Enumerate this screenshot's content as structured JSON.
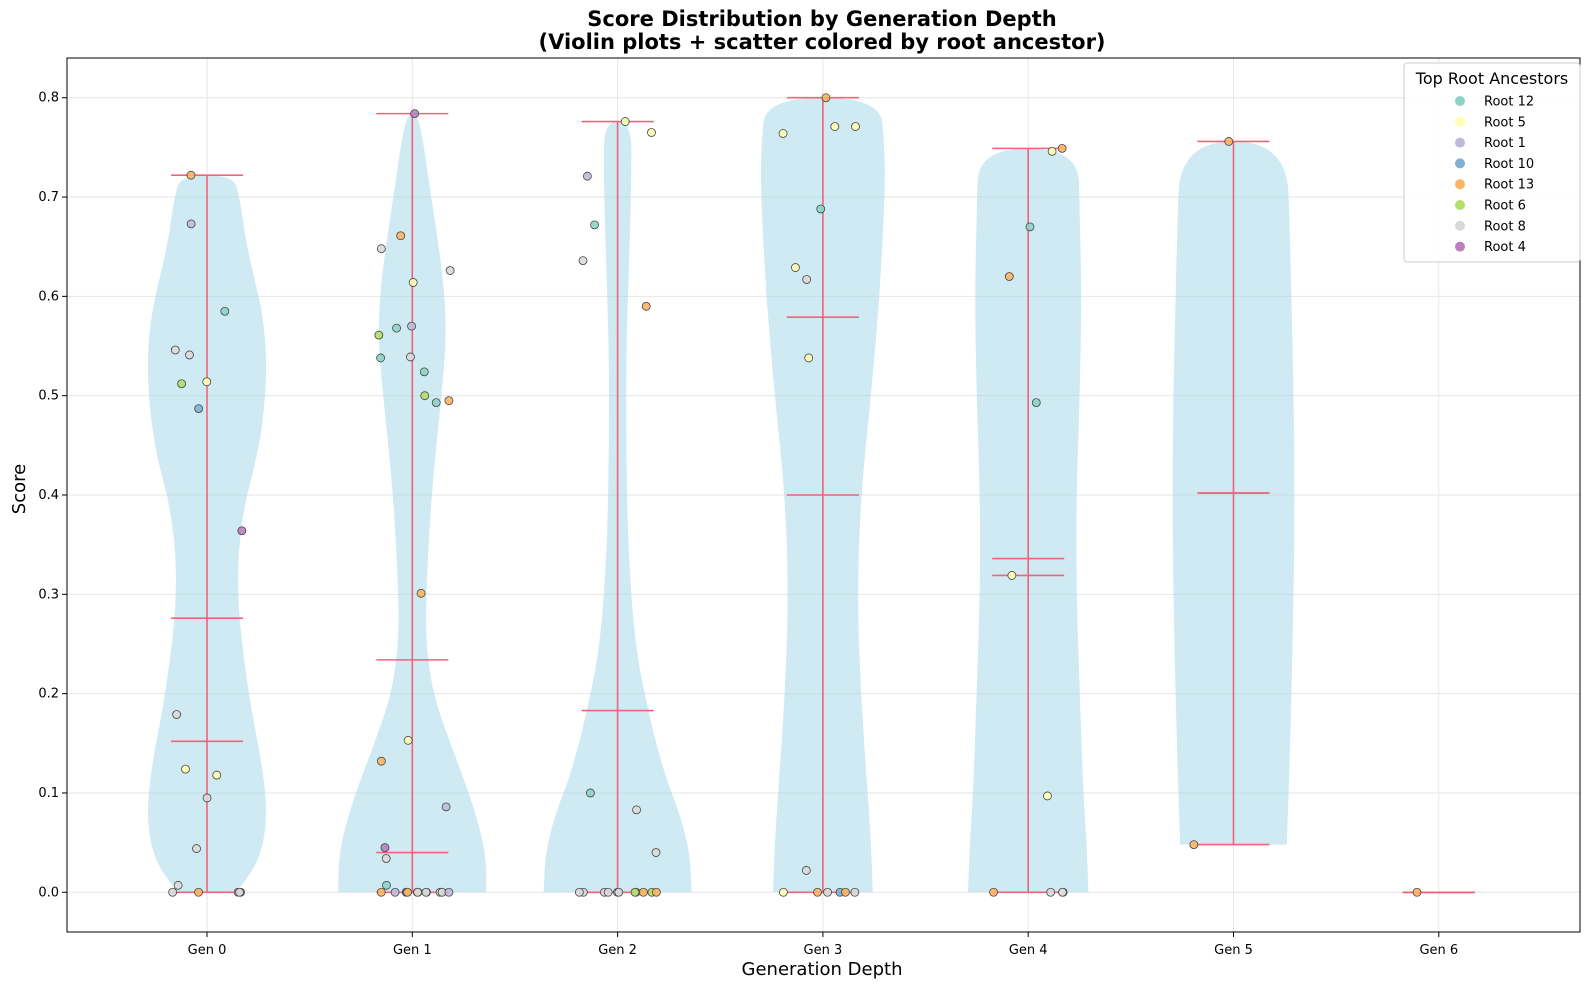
{
  "chart_data": {
    "type": "violin",
    "title_line1": "Score Distribution by Generation Depth",
    "title_line2": "(Violin plots + scatter colored by root ancestor)",
    "xlabel": "Generation Depth",
    "ylabel": "Score",
    "ylim": [
      -0.04,
      0.84
    ],
    "yticks": [
      "0.0",
      "0.1",
      "0.2",
      "0.3",
      "0.4",
      "0.5",
      "0.6",
      "0.7",
      "0.8"
    ],
    "categories": [
      "Gen 0",
      "Gen 1",
      "Gen 2",
      "Gen 3",
      "Gen 4",
      "Gen 5",
      "Gen 6"
    ],
    "grid": true,
    "legend_position": "top-right",
    "colors": {
      "violin_fill": "#a8d8e8",
      "stat_line": "#f0637c"
    },
    "legend": {
      "title": "Top Root Ancestors",
      "entries": [
        {
          "label": "Root 12",
          "color": "#8dd3c7"
        },
        {
          "label": "Root 5",
          "color": "#ffffb3"
        },
        {
          "label": "Root 1",
          "color": "#bebada"
        },
        {
          "label": "Root 10",
          "color": "#80b1d3"
        },
        {
          "label": "Root 13",
          "color": "#fdb462"
        },
        {
          "label": "Root 6",
          "color": "#b3de69"
        },
        {
          "label": "Root 8",
          "color": "#d9d9d9"
        },
        {
          "label": "Root 4",
          "color": "#bc80bd"
        }
      ]
    },
    "violins": [
      {
        "gen": 0,
        "min": 0.0,
        "max": 0.722,
        "mean": 0.276,
        "median": 0.152,
        "profile": [
          [
            0.0,
            0.34
          ],
          [
            0.03,
            0.6
          ],
          [
            0.07,
            0.7
          ],
          [
            0.12,
            0.66
          ],
          [
            0.2,
            0.48
          ],
          [
            0.3,
            0.34
          ],
          [
            0.38,
            0.4
          ],
          [
            0.45,
            0.62
          ],
          [
            0.52,
            0.7
          ],
          [
            0.58,
            0.66
          ],
          [
            0.65,
            0.46
          ],
          [
            0.7,
            0.38
          ],
          [
            0.722,
            0.3
          ]
        ],
        "points": [
          [
            0.0,
            "#d9d9d9"
          ],
          [
            0.0,
            "#bebada"
          ],
          [
            0.0,
            "#d9d9d9"
          ],
          [
            0.0,
            "#fdb462"
          ],
          [
            0.0,
            "#d9d9d9"
          ],
          [
            0.007,
            "#d9d9d9"
          ],
          [
            0.044,
            "#d9d9d9"
          ],
          [
            0.095,
            "#d9d9d9"
          ],
          [
            0.118,
            "#ffffb3"
          ],
          [
            0.124,
            "#ffffb3"
          ],
          [
            0.179,
            "#d9d9d9"
          ],
          [
            0.364,
            "#bc80bd"
          ],
          [
            0.487,
            "#80b1d3"
          ],
          [
            0.512,
            "#b3de69"
          ],
          [
            0.514,
            "#ffffb3"
          ],
          [
            0.541,
            "#d9d9d9"
          ],
          [
            0.546,
            "#d9d9d9"
          ],
          [
            0.585,
            "#8dd3c7"
          ],
          [
            0.673,
            "#bebada"
          ],
          [
            0.722,
            "#fdb462"
          ]
        ]
      },
      {
        "gen": 1,
        "min": 0.0,
        "max": 0.784,
        "mean": 0.234,
        "median": 0.04,
        "profile": [
          [
            0.0,
            0.86
          ],
          [
            0.03,
            0.86
          ],
          [
            0.06,
            0.8
          ],
          [
            0.1,
            0.66
          ],
          [
            0.15,
            0.44
          ],
          [
            0.2,
            0.24
          ],
          [
            0.25,
            0.16
          ],
          [
            0.3,
            0.16
          ],
          [
            0.4,
            0.22
          ],
          [
            0.5,
            0.34
          ],
          [
            0.56,
            0.4
          ],
          [
            0.62,
            0.36
          ],
          [
            0.7,
            0.22
          ],
          [
            0.76,
            0.12
          ],
          [
            0.784,
            0.05
          ]
        ],
        "points": [
          [
            0.0,
            "#fdb462"
          ],
          [
            0.0,
            "#fdb462"
          ],
          [
            0.0,
            "#bebada"
          ],
          [
            0.0,
            "#d9d9d9"
          ],
          [
            0.0,
            "#fdb462"
          ],
          [
            0.0,
            "#80b1d3"
          ],
          [
            0.0,
            "#bebada"
          ],
          [
            0.0,
            "#fdb462"
          ],
          [
            0.0,
            "#d9d9d9"
          ],
          [
            0.0,
            "#d9d9d9"
          ],
          [
            0.0,
            "#fdb462"
          ],
          [
            0.0,
            "#bebada"
          ],
          [
            0.0,
            "#d9d9d9"
          ],
          [
            0.0,
            "#d9d9d9"
          ],
          [
            0.007,
            "#8dd3c7"
          ],
          [
            0.034,
            "#d9d9d9"
          ],
          [
            0.045,
            "#bc80bd"
          ],
          [
            0.086,
            "#bebada"
          ],
          [
            0.132,
            "#fdb462"
          ],
          [
            0.153,
            "#ffffb3"
          ],
          [
            0.301,
            "#fdb462"
          ],
          [
            0.493,
            "#8dd3c7"
          ],
          [
            0.495,
            "#fdb462"
          ],
          [
            0.5,
            "#b3de69"
          ],
          [
            0.524,
            "#8dd3c7"
          ],
          [
            0.538,
            "#8dd3c7"
          ],
          [
            0.539,
            "#d9d9d9"
          ],
          [
            0.561,
            "#b3de69"
          ],
          [
            0.568,
            "#8dd3c7"
          ],
          [
            0.57,
            "#bebada"
          ],
          [
            0.614,
            "#ffffb3"
          ],
          [
            0.626,
            "#d9d9d9"
          ],
          [
            0.648,
            "#d9d9d9"
          ],
          [
            0.661,
            "#fdb462"
          ],
          [
            0.784,
            "#bc80bd"
          ]
        ]
      },
      {
        "gen": 2,
        "min": 0.0,
        "max": 0.776,
        "mean": 0.183,
        "median": 0.0,
        "profile": [
          [
            0.0,
            0.86
          ],
          [
            0.04,
            0.84
          ],
          [
            0.08,
            0.72
          ],
          [
            0.12,
            0.54
          ],
          [
            0.18,
            0.36
          ],
          [
            0.25,
            0.2
          ],
          [
            0.35,
            0.12
          ],
          [
            0.45,
            0.1
          ],
          [
            0.55,
            0.1
          ],
          [
            0.65,
            0.14
          ],
          [
            0.72,
            0.16
          ],
          [
            0.776,
            0.16
          ]
        ],
        "points": [
          [
            0.0,
            "#d9d9d9"
          ],
          [
            0.0,
            "#b3de69"
          ],
          [
            0.0,
            "#bebada"
          ],
          [
            0.0,
            "#fdb462"
          ],
          [
            0.0,
            "#fdb462"
          ],
          [
            0.0,
            "#b3de69"
          ],
          [
            0.0,
            "#fdb462"
          ],
          [
            0.0,
            "#d9d9d9"
          ],
          [
            0.0,
            "#d9d9d9"
          ],
          [
            0.0,
            "#d9d9d9"
          ],
          [
            0.0,
            "#d9d9d9"
          ],
          [
            0.04,
            "#d9d9d9"
          ],
          [
            0.083,
            "#d9d9d9"
          ],
          [
            0.1,
            "#8dd3c7"
          ],
          [
            0.59,
            "#fdb462"
          ],
          [
            0.636,
            "#d9d9d9"
          ],
          [
            0.672,
            "#8dd3c7"
          ],
          [
            0.721,
            "#bebada"
          ],
          [
            0.765,
            "#ffffb3"
          ],
          [
            0.776,
            "#ffffb3"
          ]
        ]
      },
      {
        "gen": 3,
        "min": 0.0,
        "max": 0.8,
        "mean": 0.579,
        "median": 0.4,
        "profile": [
          [
            0.0,
            0.58
          ],
          [
            0.05,
            0.56
          ],
          [
            0.1,
            0.52
          ],
          [
            0.2,
            0.44
          ],
          [
            0.3,
            0.4
          ],
          [
            0.4,
            0.44
          ],
          [
            0.5,
            0.56
          ],
          [
            0.6,
            0.66
          ],
          [
            0.7,
            0.72
          ],
          [
            0.75,
            0.72
          ],
          [
            0.8,
            0.66
          ]
        ],
        "points": [
          [
            0.0,
            "#d9d9d9"
          ],
          [
            0.0,
            "#fdb462"
          ],
          [
            0.0,
            "#80b1d3"
          ],
          [
            0.0,
            "#d9d9d9"
          ],
          [
            0.0,
            "#fdb462"
          ],
          [
            0.0,
            "#ffffb3"
          ],
          [
            0.022,
            "#d9d9d9"
          ],
          [
            0.538,
            "#ffffb3"
          ],
          [
            0.617,
            "#d9d9d9"
          ],
          [
            0.629,
            "#ffffb3"
          ],
          [
            0.688,
            "#8dd3c7"
          ],
          [
            0.764,
            "#ffffb3"
          ],
          [
            0.771,
            "#ffffb3"
          ],
          [
            0.771,
            "#ffffb3"
          ],
          [
            0.8,
            "#fdb462"
          ]
        ]
      },
      {
        "gen": 4,
        "min": 0.0,
        "max": 0.749,
        "mean": 0.336,
        "median": 0.319,
        "profile": [
          [
            0.0,
            0.7
          ],
          [
            0.05,
            0.68
          ],
          [
            0.1,
            0.64
          ],
          [
            0.2,
            0.6
          ],
          [
            0.3,
            0.56
          ],
          [
            0.4,
            0.56
          ],
          [
            0.5,
            0.6
          ],
          [
            0.6,
            0.62
          ],
          [
            0.68,
            0.6
          ],
          [
            0.749,
            0.58
          ]
        ],
        "points": [
          [
            0.0,
            "#d9d9d9"
          ],
          [
            0.0,
            "#ffffb3"
          ],
          [
            0.0,
            "#d9d9d9"
          ],
          [
            0.0,
            "#fdb462"
          ],
          [
            0.097,
            "#ffffb3"
          ],
          [
            0.319,
            "#ffffb3"
          ],
          [
            0.493,
            "#8dd3c7"
          ],
          [
            0.62,
            "#fdb462"
          ],
          [
            0.67,
            "#8dd3c7"
          ],
          [
            0.746,
            "#ffffb3"
          ],
          [
            0.749,
            "#fdb462"
          ]
        ]
      },
      {
        "gen": 5,
        "min": 0.048,
        "max": 0.756,
        "mean": 0.402,
        "median": 0.402,
        "profile": [
          [
            0.048,
            0.62
          ],
          [
            0.15,
            0.66
          ],
          [
            0.3,
            0.7
          ],
          [
            0.402,
            0.71
          ],
          [
            0.5,
            0.7
          ],
          [
            0.65,
            0.66
          ],
          [
            0.756,
            0.62
          ]
        ],
        "points": [
          [
            0.048,
            "#fdb462"
          ],
          [
            0.756,
            "#fdb462"
          ]
        ]
      },
      {
        "gen": 6,
        "min": 0.0,
        "max": 0.0,
        "mean": 0.0,
        "median": 0.0,
        "profile": [],
        "points": [
          [
            0.0,
            "#fdb462"
          ]
        ]
      }
    ]
  }
}
